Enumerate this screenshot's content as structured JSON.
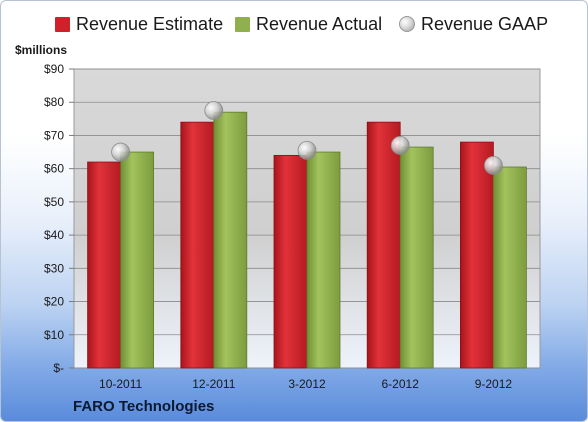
{
  "chart_data": {
    "type": "bar",
    "title": "",
    "units_label": "$millions",
    "company": "FARO Technologies",
    "categories": [
      "10-2011",
      "12-2011",
      "3-2012",
      "6-2012",
      "9-2012"
    ],
    "series": [
      {
        "name": "Revenue Estimate",
        "type": "bar",
        "color": "#d0202a",
        "values": [
          62,
          74,
          64,
          74,
          68
        ]
      },
      {
        "name": "Revenue Actual",
        "type": "bar",
        "color": "#8fb04c",
        "values": [
          65,
          77,
          65,
          66.5,
          60.5
        ]
      },
      {
        "name": "Revenue GAAP",
        "type": "marker",
        "color": "#bfbfbf",
        "values": [
          65,
          77.5,
          65.5,
          67,
          61
        ]
      }
    ],
    "ylim": [
      0,
      90
    ],
    "yticks": [
      0,
      10,
      20,
      30,
      40,
      50,
      60,
      70,
      80,
      90
    ],
    "ytick_labels": [
      "$-",
      "$10",
      "$20",
      "$30",
      "$40",
      "$50",
      "$60",
      "$70",
      "$80",
      "$90"
    ],
    "grid": true,
    "legend_position": "top"
  }
}
